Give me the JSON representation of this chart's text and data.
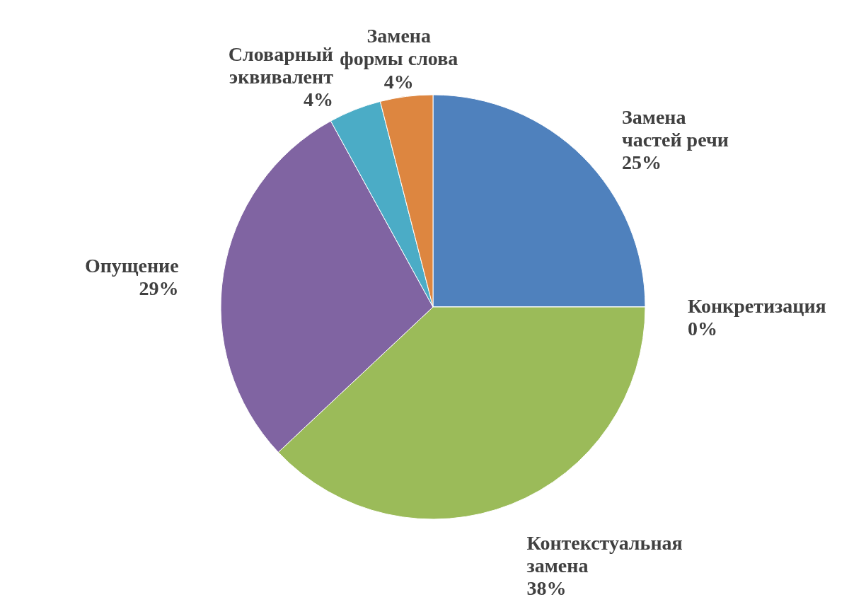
{
  "chart_data": {
    "type": "pie",
    "categories": [
      "Замена частей речи",
      "Конкретизация",
      "Контекстуальная замена",
      "Опущение",
      "Словарный эквивалент",
      "Замена формы слова"
    ],
    "values": [
      25,
      0,
      38,
      29,
      4,
      4
    ],
    "value_labels": [
      "25%",
      "0%",
      "38%",
      "29%",
      "4%",
      "4%"
    ],
    "colors": [
      "#4f81bd",
      "#c0504d",
      "#9bbb59",
      "#8064a2",
      "#4bacc6",
      "#dd8640"
    ]
  }
}
